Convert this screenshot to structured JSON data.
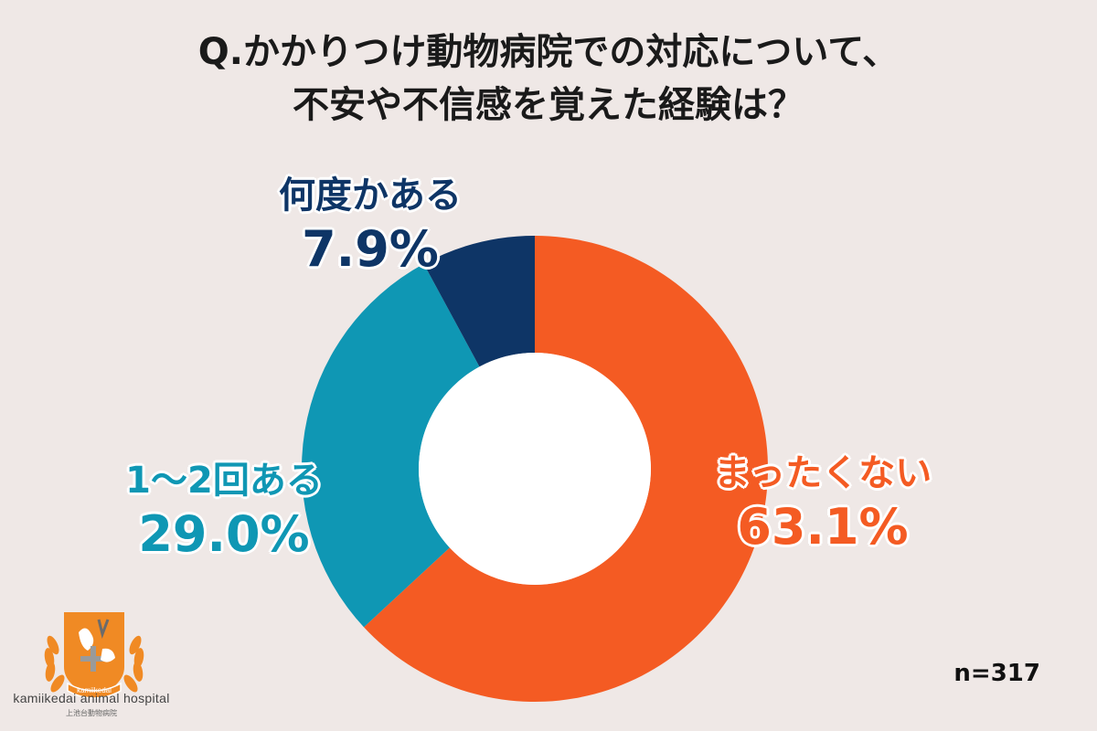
{
  "title": {
    "line1": "Q.かかりつけ動物病院での対応について、",
    "line2": "不安や不信感を覚えた経験は？"
  },
  "chart_data": {
    "type": "pie",
    "donut": true,
    "categories": [
      "まったくない",
      "1～2回ある",
      "何度かある"
    ],
    "values": [
      63.1,
      29.0,
      7.9
    ],
    "value_labels": [
      "63.1%",
      "29.0%",
      "7.9%"
    ],
    "colors": [
      "#f45b23",
      "#0f97b4",
      "#0e3566"
    ],
    "start": "12 o'clock",
    "direction": "clockwise"
  },
  "sample_size": "n=317",
  "logo": {
    "badge_text": "kamiikedai",
    "name": "kamiikedai animal hospital",
    "subname": "上池台動物病院"
  }
}
